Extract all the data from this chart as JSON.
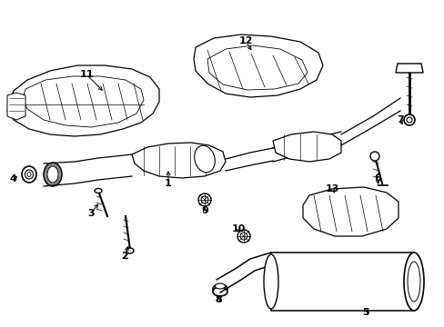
{
  "background_color": "#ffffff",
  "fig_width": 4.89,
  "fig_height": 3.6,
  "dpi": 100,
  "lw": 0.9
}
